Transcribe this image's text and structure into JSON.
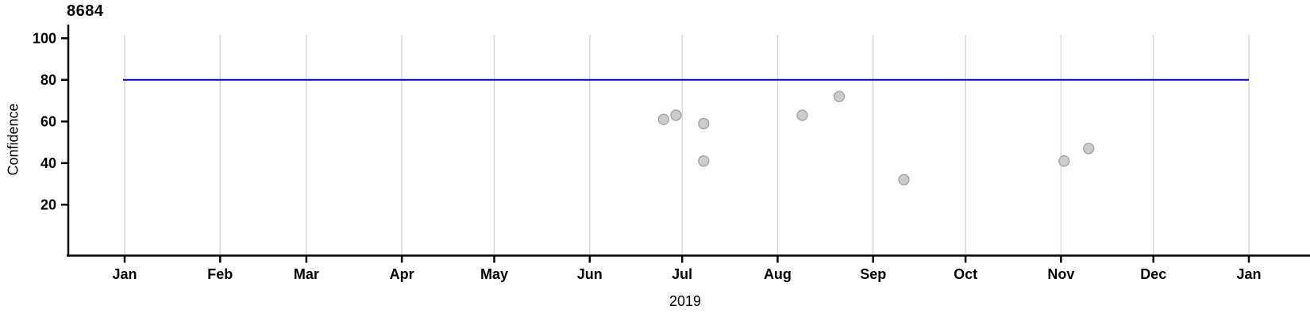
{
  "chart_data": {
    "type": "scatter",
    "title": "8684",
    "xlabel": "2019",
    "ylabel": "Confidence",
    "x_tick_labels": [
      "Jan",
      "Feb",
      "Mar",
      "Apr",
      "May",
      "Jun",
      "Jul",
      "Aug",
      "Sep",
      "Oct",
      "Nov",
      "Dec",
      "Jan"
    ],
    "y_ticks": [
      20,
      40,
      60,
      80,
      100
    ],
    "ylim": [
      0,
      105
    ],
    "x_axis_span_days": 365,
    "grid": "vertical gridlines at month starts only",
    "legend": "none",
    "points": [
      {
        "date": "2019-06-25",
        "value": 61
      },
      {
        "date": "2019-06-29",
        "value": 63
      },
      {
        "date": "2019-07-08",
        "value": 59
      },
      {
        "date": "2019-07-08",
        "value": 41
      },
      {
        "date": "2019-08-09",
        "value": 63
      },
      {
        "date": "2019-08-21",
        "value": 72
      },
      {
        "date": "2019-09-11",
        "value": 32
      },
      {
        "date": "2019-11-02",
        "value": 41
      },
      {
        "date": "2019-11-10",
        "value": 47
      }
    ],
    "reference_line": {
      "value": 80,
      "color": "#0000cc"
    },
    "colors": {
      "point_fill": "#cccccc",
      "point_stroke": "#a0a0a0",
      "gridline": "#d9d9d9",
      "axis": "#000000",
      "text": "#000000",
      "background": "#ffffff"
    }
  }
}
